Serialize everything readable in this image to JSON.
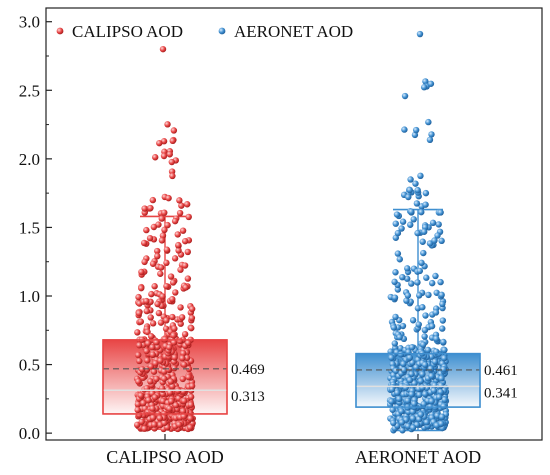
{
  "chart_data": {
    "type": "box-scatter",
    "title": "",
    "xlabel": "",
    "ylabel": "",
    "ylim": [
      -0.05,
      3.1
    ],
    "yticks": [
      "0.0",
      "0.5",
      "1.0",
      "1.5",
      "2.0",
      "2.5",
      "3.0"
    ],
    "grid": false,
    "legend_position": "top-left",
    "categories": [
      "CALIPSO AOD",
      "AERONET AOD"
    ],
    "series": [
      {
        "name": "CALIPSO AOD",
        "color": "#e84545",
        "box": {
          "q1": 0.14,
          "median": 0.313,
          "q3": 0.68,
          "whisker_low": 0.03,
          "whisker_high": 1.58
        },
        "mean": 0.469,
        "mean_label": "0.469",
        "median_label": "0.313",
        "max_point": 2.8
      },
      {
        "name": "AERONET AOD",
        "color": "#3f8fd0",
        "box": {
          "q1": 0.19,
          "median": 0.341,
          "q3": 0.58,
          "whisker_low": 0.02,
          "whisker_high": 1.63
        },
        "mean": 0.461,
        "mean_label": "0.461",
        "median_label": "0.341",
        "max_point": 2.91
      }
    ]
  }
}
